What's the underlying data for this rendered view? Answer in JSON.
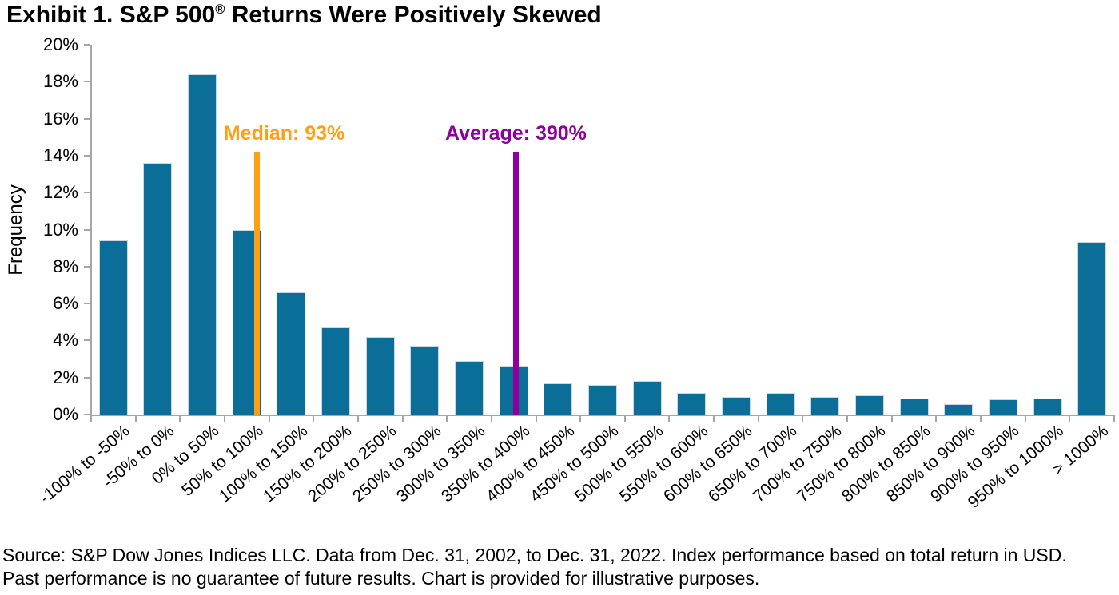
{
  "title": {
    "text_before_reg": "Exhibit 1. S&P 500",
    "registered_symbol": "®",
    "text_after_reg": " Returns Were Positively Skewed"
  },
  "colors": {
    "bar": "#0B6E99",
    "axis": "#A6A6A6",
    "median": "#FFA014",
    "average": "#8E009E",
    "text": "#000000"
  },
  "chart_data": {
    "type": "bar",
    "title": "Exhibit 1. S&P 500® Returns Were Positively Skewed",
    "xlabel": "",
    "ylabel": "Frequency",
    "ylim": [
      0,
      20
    ],
    "ytick_step": 2,
    "ytick_labels": [
      "0%",
      "2%",
      "4%",
      "6%",
      "8%",
      "10%",
      "12%",
      "14%",
      "16%",
      "18%",
      "20%"
    ],
    "grid": false,
    "legend": "none",
    "categories": [
      "-100% to -50%",
      "-50% to 0%",
      "0% to 50%",
      "50% to 100%",
      "100% to 150%",
      "150% to 200%",
      "200% to 250%",
      "250% to 300%",
      "300% to 350%",
      "350% to 400%",
      "400% to 450%",
      "450% to 500%",
      "500% to 550%",
      "550% to 600%",
      "600% to 650%",
      "650% to 700%",
      "700% to 750%",
      "750% to 800%",
      "800% to 850%",
      "850% to 900%",
      "900% to 950%",
      "950% to 1000%",
      "> 1000%"
    ],
    "values": [
      9.4,
      13.6,
      18.4,
      10.0,
      6.6,
      4.7,
      4.2,
      3.7,
      2.9,
      2.65,
      1.7,
      1.6,
      1.8,
      1.15,
      0.95,
      1.15,
      0.95,
      1.05,
      0.85,
      0.55,
      0.8,
      0.85,
      9.35
    ],
    "annotations": [
      {
        "name": "median",
        "label": "Median: 93%",
        "value_pct": 93,
        "color": "#FFA014"
      },
      {
        "name": "average",
        "label": "Average: 390%",
        "value_pct": 390,
        "color": "#8E009E"
      }
    ]
  },
  "footer": {
    "line1": "Source: S&P Dow Jones Indices LLC. Data from Dec. 31, 2002, to Dec. 31, 2022. Index performance based on total return in USD.",
    "line2": "Past performance is no guarantee of future results. Chart is provided for illustrative purposes."
  }
}
